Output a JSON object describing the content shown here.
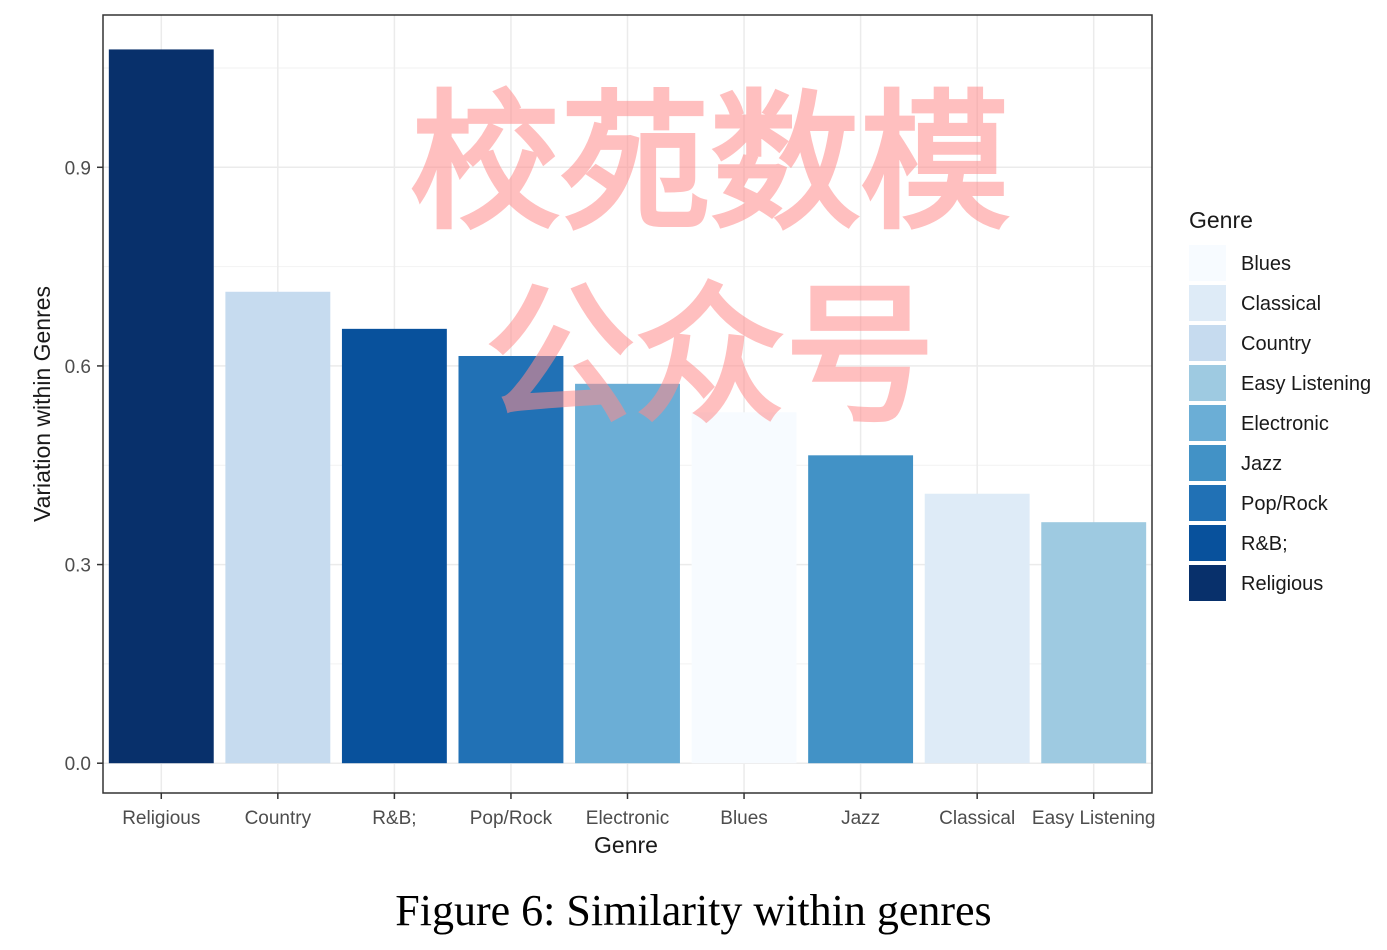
{
  "chart_data": {
    "type": "bar",
    "categories": [
      "Religious",
      "Country",
      "R&B;",
      "Pop/Rock",
      "Electronic",
      "Blues",
      "Jazz",
      "Classical",
      "Easy Listening"
    ],
    "values": [
      1.078,
      0.712,
      0.656,
      0.615,
      0.573,
      0.53,
      0.465,
      0.407,
      0.364
    ],
    "bar_colors": [
      "#08306b",
      "#c6dbef",
      "#08519c",
      "#2171b5",
      "#6baed6",
      "#f7fbff",
      "#4292c6",
      "#deebf7",
      "#9ecae1"
    ],
    "xlabel": "Genre",
    "ylabel": "Variation within Genres",
    "ylim": [
      -0.045,
      1.13
    ],
    "yticks": [
      0.0,
      0.3,
      0.6,
      0.9
    ],
    "ytick_labels": [
      "0.0",
      "0.3",
      "0.6",
      "0.9"
    ],
    "grid": true,
    "legend": {
      "title": "Genre",
      "placement": "right",
      "entries": [
        {
          "label": "Blues",
          "color": "#f7fbff"
        },
        {
          "label": "Classical",
          "color": "#deebf7"
        },
        {
          "label": "Country",
          "color": "#c6dbef"
        },
        {
          "label": "Easy Listening",
          "color": "#9ecae1"
        },
        {
          "label": "Electronic",
          "color": "#6baed6"
        },
        {
          "label": "Jazz",
          "color": "#4292c6"
        },
        {
          "label": "Pop/Rock",
          "color": "#2171b5"
        },
        {
          "label": "R&B;",
          "color": "#08519c"
        },
        {
          "label": "Religious",
          "color": "#08306b"
        }
      ]
    }
  },
  "caption": "Figure 6: Similarity within genres",
  "watermark": {
    "line1": "校苑数模",
    "line2": "公众号",
    "color": "#ff8a8a"
  }
}
